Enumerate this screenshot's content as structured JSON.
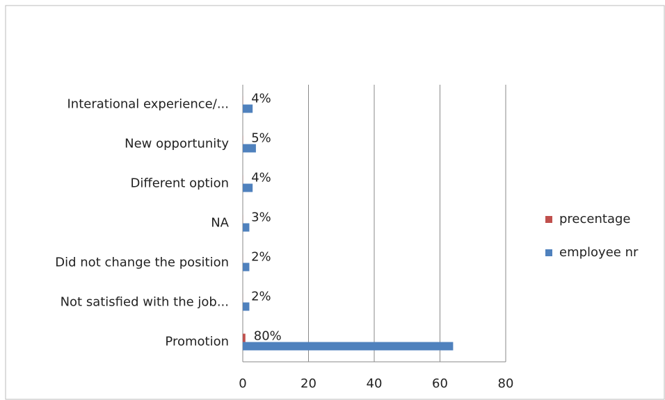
{
  "chart_data": {
    "type": "bar",
    "orientation": "horizontal",
    "categories": [
      "Interational experience/...",
      "New opportunity",
      "Different option",
      "NA",
      "Did not change the position",
      "Not satisfied with the job...",
      "Promotion"
    ],
    "series": [
      {
        "name": "precentage",
        "color": "#c0504d",
        "values": [
          0.04,
          0.05,
          0.04,
          0.03,
          0.02,
          0.02,
          0.8
        ],
        "value_labels": [
          "4%",
          "5%",
          "4%",
          "3%",
          "2%",
          "2%",
          "80%"
        ]
      },
      {
        "name": "employee nr",
        "color": "#4f81bd",
        "values": [
          3,
          4,
          3,
          2,
          2,
          2,
          64
        ]
      }
    ],
    "xlim": [
      0,
      80
    ],
    "xticks": [
      0,
      20,
      40,
      60,
      80
    ],
    "grid": true,
    "legend": "right"
  }
}
